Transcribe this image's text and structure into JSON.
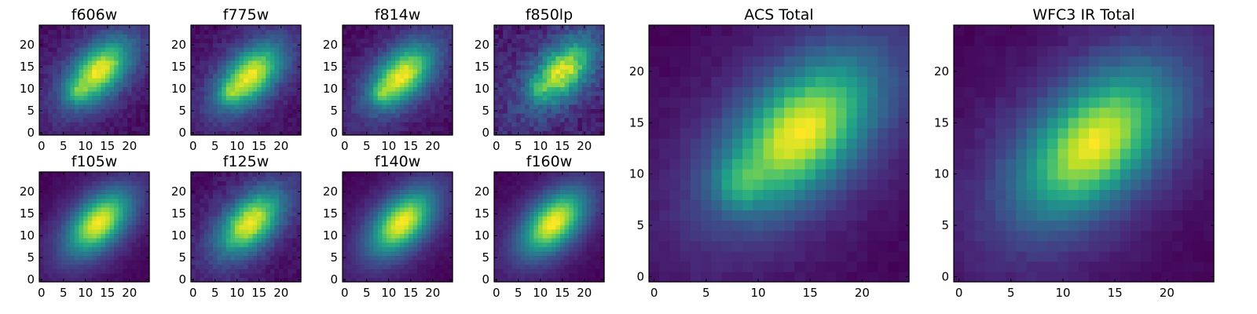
{
  "chart_data": [
    {
      "type": "heatmap",
      "title": "f606w",
      "colormap": "viridis",
      "grid_size": 25,
      "xlim": [
        0,
        24
      ],
      "ylim": [
        0,
        24
      ],
      "x_ticks": [
        0,
        5,
        10,
        15,
        20
      ],
      "y_ticks": [
        0,
        5,
        10,
        15,
        20
      ],
      "peak": {
        "x": 13,
        "y": 14,
        "intensity": 1.0
      },
      "secondary_peak": {
        "x": 8,
        "y": 9,
        "intensity": 0.55
      },
      "orientation": "elongated along diagonal",
      "noise": "moderate"
    },
    {
      "type": "heatmap",
      "title": "f775w",
      "colormap": "viridis",
      "grid_size": 25,
      "xlim": [
        0,
        24
      ],
      "ylim": [
        0,
        24
      ],
      "x_ticks": [
        0,
        5,
        10,
        15,
        20
      ],
      "y_ticks": [
        0,
        5,
        10,
        15,
        20
      ],
      "peak": {
        "x": 13,
        "y": 13,
        "intensity": 1.0
      },
      "secondary_peak": {
        "x": 8,
        "y": 9,
        "intensity": 0.5
      },
      "orientation": "elongated along diagonal",
      "noise": "moderate"
    },
    {
      "type": "heatmap",
      "title": "f814w",
      "colormap": "viridis",
      "grid_size": 25,
      "xlim": [
        0,
        24
      ],
      "ylim": [
        0,
        24
      ],
      "x_ticks": [
        0,
        5,
        10,
        15,
        20
      ],
      "y_ticks": [
        0,
        5,
        10,
        15,
        20
      ],
      "peak": {
        "x": 13,
        "y": 13,
        "intensity": 1.0
      },
      "secondary_peak": {
        "x": 8,
        "y": 9,
        "intensity": 0.45
      },
      "orientation": "elongated along diagonal",
      "noise": "moderate"
    },
    {
      "type": "heatmap",
      "title": "f850lp",
      "colormap": "viridis",
      "grid_size": 25,
      "xlim": [
        0,
        24
      ],
      "ylim": [
        0,
        24
      ],
      "x_ticks": [
        0,
        5,
        10,
        15,
        20
      ],
      "y_ticks": [
        0,
        5,
        10,
        15,
        20
      ],
      "peak": {
        "x": 15,
        "y": 14,
        "intensity": 1.0
      },
      "secondary_peak": {
        "x": 9,
        "y": 10,
        "intensity": 0.4
      },
      "orientation": "elongated along diagonal",
      "noise": "high"
    },
    {
      "type": "heatmap",
      "title": "f105w",
      "colormap": "viridis",
      "grid_size": 25,
      "xlim": [
        0,
        24
      ],
      "ylim": [
        0,
        24
      ],
      "x_ticks": [
        0,
        5,
        10,
        15,
        20
      ],
      "y_ticks": [
        0,
        5,
        10,
        15,
        20
      ],
      "peak": {
        "x": 13,
        "y": 13,
        "intensity": 1.0
      },
      "orientation": "elongated along diagonal",
      "noise": "low"
    },
    {
      "type": "heatmap",
      "title": "f125w",
      "colormap": "viridis",
      "grid_size": 25,
      "xlim": [
        0,
        24
      ],
      "ylim": [
        0,
        24
      ],
      "x_ticks": [
        0,
        5,
        10,
        15,
        20
      ],
      "y_ticks": [
        0,
        5,
        10,
        15,
        20
      ],
      "peak": {
        "x": 13,
        "y": 13,
        "intensity": 1.0
      },
      "orientation": "elongated along diagonal",
      "noise": "moderate"
    },
    {
      "type": "heatmap",
      "title": "f140w",
      "colormap": "viridis",
      "grid_size": 25,
      "xlim": [
        0,
        24
      ],
      "ylim": [
        0,
        24
      ],
      "x_ticks": [
        0,
        5,
        10,
        15,
        20
      ],
      "y_ticks": [
        0,
        5,
        10,
        15,
        20
      ],
      "peak": {
        "x": 13,
        "y": 13,
        "intensity": 1.0
      },
      "orientation": "elongated along diagonal",
      "noise": "low"
    },
    {
      "type": "heatmap",
      "title": "f160w",
      "colormap": "viridis",
      "grid_size": 25,
      "xlim": [
        0,
        24
      ],
      "ylim": [
        0,
        24
      ],
      "x_ticks": [
        0,
        5,
        10,
        15,
        20
      ],
      "y_ticks": [
        0,
        5,
        10,
        15,
        20
      ],
      "peak": {
        "x": 13,
        "y": 13,
        "intensity": 1.0
      },
      "orientation": "elongated along diagonal",
      "noise": "low"
    },
    {
      "type": "heatmap",
      "title": "ACS Total",
      "colormap": "viridis",
      "grid_size": 25,
      "xlim": [
        0,
        24
      ],
      "ylim": [
        0,
        24
      ],
      "x_ticks": [
        0,
        5,
        10,
        15,
        20
      ],
      "y_ticks": [
        0,
        5,
        10,
        15,
        20
      ],
      "peak": {
        "x": 14,
        "y": 14,
        "intensity": 1.0
      },
      "secondary_peak": {
        "x": 8,
        "y": 9,
        "intensity": 0.5
      },
      "orientation": "elongated along diagonal",
      "noise": "low"
    },
    {
      "type": "heatmap",
      "title": "WFC3 IR Total",
      "colormap": "viridis",
      "grid_size": 25,
      "xlim": [
        0,
        24
      ],
      "ylim": [
        0,
        24
      ],
      "x_ticks": [
        0,
        5,
        10,
        15,
        20
      ],
      "y_ticks": [
        0,
        5,
        10,
        15,
        20
      ],
      "peak": {
        "x": 13,
        "y": 13,
        "intensity": 1.0
      },
      "orientation": "elongated along diagonal",
      "noise": "low"
    }
  ]
}
